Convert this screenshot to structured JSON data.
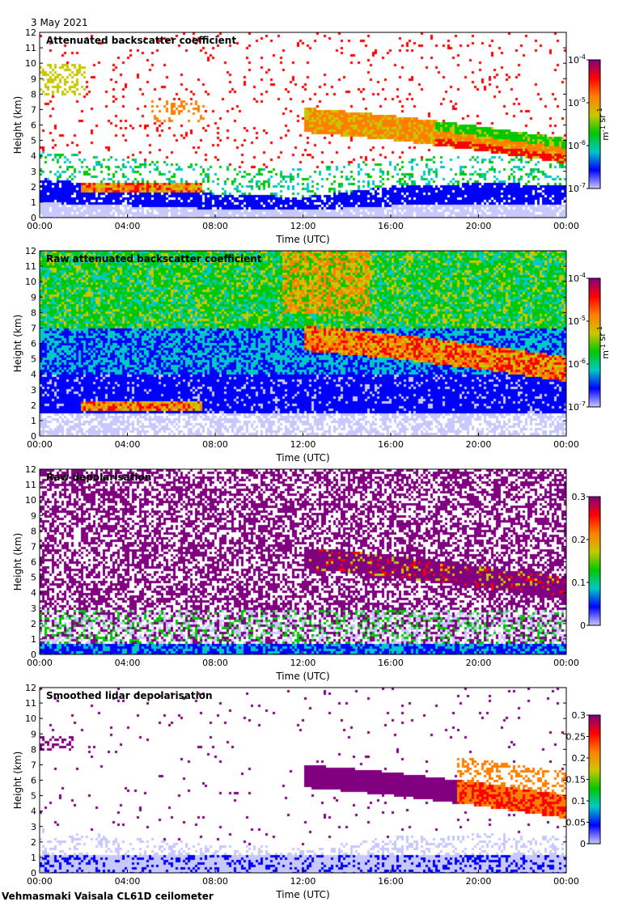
{
  "header": {
    "date": "3 May 2021"
  },
  "footer": {
    "instrument": "Vehmasmaki Vaisala CL61D ceilometer"
  },
  "colors": {
    "colormap": [
      "#c8c8ff",
      "#0000ff",
      "#00c8c8",
      "#00c800",
      "#c8c800",
      "#ff8000",
      "#ff0000",
      "#800080"
    ],
    "background": "#ffffff"
  },
  "chart_data": [
    {
      "type": "heatmap",
      "title": "Attenuated backscatter coefficient",
      "xlabel": "Time (UTC)",
      "ylabel": "Height (km)",
      "x_ticks": [
        "00:00",
        "04:00",
        "08:00",
        "12:00",
        "16:00",
        "20:00",
        "00:00"
      ],
      "y_ticks": [
        "0",
        "1",
        "2",
        "3",
        "4",
        "5",
        "6",
        "7",
        "8",
        "9",
        "10",
        "11",
        "12"
      ],
      "ylim": [
        0,
        12
      ],
      "xlim_hours": [
        0,
        24
      ],
      "colorbar": {
        "scale": "log",
        "ticks": [
          "10-7",
          "10-6",
          "10-5",
          "10-4"
        ],
        "label": "m-1 sr-1"
      },
      "features": {
        "boundary_layer_top_km": [
          [
            0,
            2.6
          ],
          [
            4,
            2.1
          ],
          [
            8,
            1.6
          ],
          [
            12,
            1.4
          ],
          [
            16,
            2.1
          ],
          [
            20,
            2.3
          ],
          [
            24,
            2.2
          ]
        ],
        "cloud_layer_base_km": [
          [
            12,
            5.6
          ],
          [
            16,
            5.1
          ],
          [
            20,
            4.4
          ],
          [
            24,
            3.6
          ]
        ],
        "low_cloud": {
          "start_h": 1.8,
          "end_h": 7.3,
          "base_km": 1.7,
          "top_km": 2.3
        }
      }
    },
    {
      "type": "heatmap",
      "title": "Raw attenuated backscatter coefficient",
      "xlabel": "Time (UTC)",
      "ylabel": "Height (km)",
      "x_ticks": [
        "00:00",
        "04:00",
        "08:00",
        "12:00",
        "16:00",
        "20:00",
        "00:00"
      ],
      "y_ticks": [
        "0",
        "1",
        "2",
        "3",
        "4",
        "5",
        "6",
        "7",
        "8",
        "9",
        "10",
        "11",
        "12"
      ],
      "ylim": [
        0,
        12
      ],
      "colorbar": {
        "scale": "log",
        "ticks": [
          "10-7",
          "10-6",
          "10-5",
          "10-4"
        ],
        "label": "m-1 sr-1"
      }
    },
    {
      "type": "heatmap",
      "title": "Raw depolarisation",
      "xlabel": "Time (UTC)",
      "ylabel": "Height (km)",
      "x_ticks": [
        "00:00",
        "04:00",
        "08:00",
        "12:00",
        "16:00",
        "20:00",
        "00:00"
      ],
      "y_ticks": [
        "0",
        "1",
        "2",
        "3",
        "4",
        "5",
        "6",
        "7",
        "8",
        "9",
        "10",
        "11",
        "12"
      ],
      "ylim": [
        0,
        12
      ],
      "colorbar": {
        "scale": "linear",
        "ticks": [
          "0",
          "0.1",
          "0.2",
          "0.3"
        ],
        "range": [
          0,
          0.3
        ],
        "label": ""
      }
    },
    {
      "type": "heatmap",
      "title": "Smoothed lidar depolarisation",
      "xlabel": "Time (UTC)",
      "ylabel": "Height (km)",
      "x_ticks": [
        "00:00",
        "04:00",
        "08:00",
        "12:00",
        "16:00",
        "20:00",
        "00:00"
      ],
      "y_ticks": [
        "0",
        "1",
        "2",
        "3",
        "4",
        "5",
        "6",
        "7",
        "8",
        "9",
        "10",
        "11",
        "12"
      ],
      "ylim": [
        0,
        12
      ],
      "colorbar": {
        "scale": "linear",
        "ticks": [
          "0",
          "0.05",
          "0.1",
          "0.15",
          "0.2",
          "0.25",
          "0.3"
        ],
        "range": [
          0,
          0.3
        ],
        "label": ""
      }
    }
  ]
}
